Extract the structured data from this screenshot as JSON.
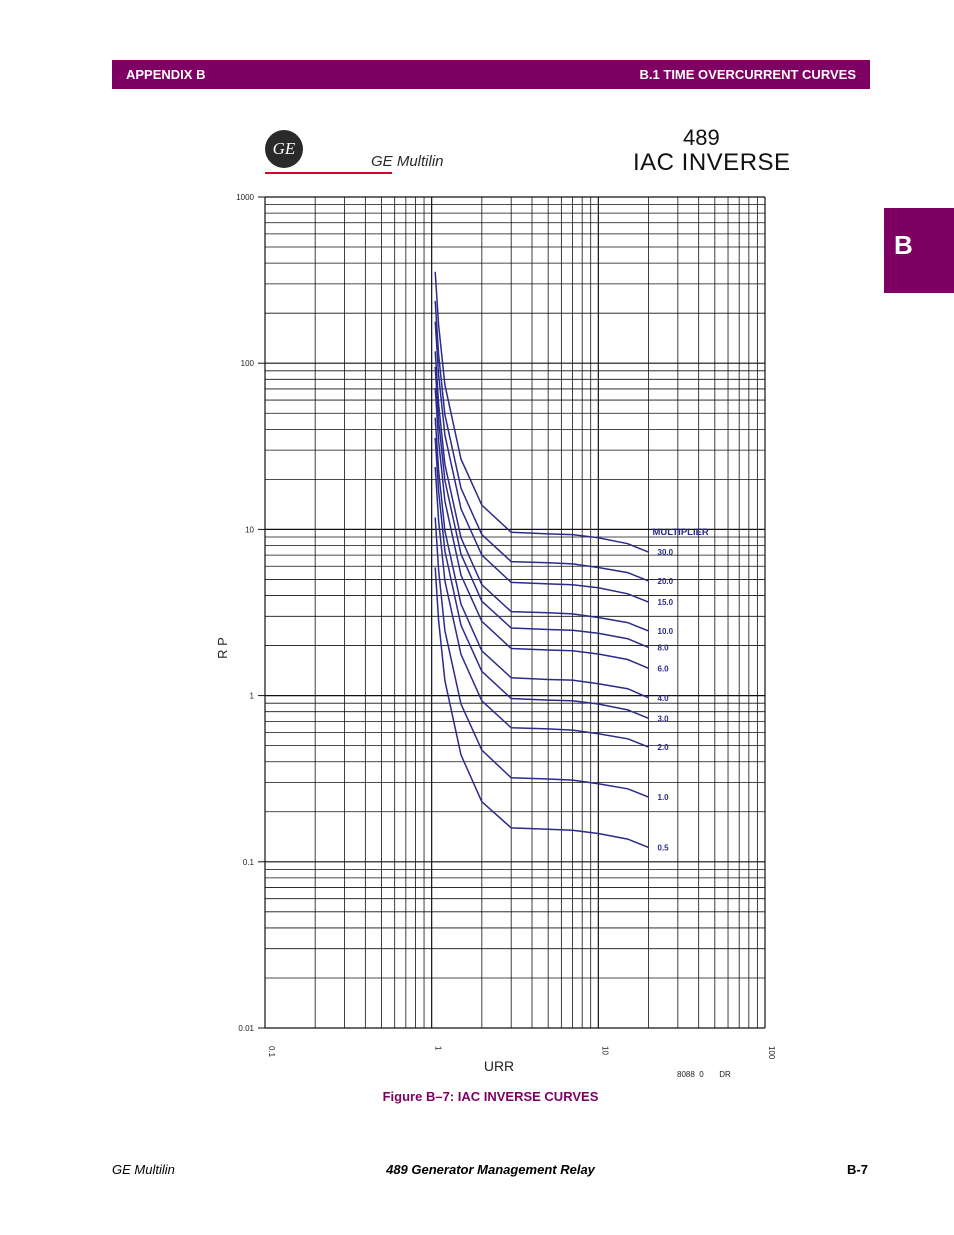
{
  "header": {
    "left": "APPENDIX B",
    "right": "B.1 TIME OVERCURRENT CURVES"
  },
  "side_tab": "B",
  "logo": {
    "icon": "ge-logo-icon",
    "glyph": "GE",
    "brand": "GE Multilin"
  },
  "title": {
    "number": "489",
    "main": "IAC INVERSE"
  },
  "colors": {
    "brand": "#7f0063",
    "curve": "#2b2b8c",
    "grid": "#111111",
    "logo_line": "#d8002a"
  },
  "chart_data": {
    "type": "line",
    "x_scale": "log",
    "y_scale": "log",
    "xlim": [
      0.1,
      100
    ],
    "ylim": [
      0.01,
      1000
    ],
    "xlabel": "URR",
    "ylabel": "R P",
    "x_ticks": [
      "0.1",
      "1",
      "10",
      "100"
    ],
    "y_ticks": [
      "1000",
      "100",
      "10",
      "1",
      "0.1",
      "0.01"
    ],
    "grid": true,
    "legend_title": "MULTIPLIER",
    "drawing_number": "8088  0       DR",
    "x": [
      1.05,
      1.1,
      1.2,
      1.5,
      2,
      3,
      5,
      7,
      10,
      15,
      20
    ],
    "series": [
      {
        "name": "30.0",
        "values": [
          355,
          170,
          74,
          26.5,
          14.0,
          9.6,
          9.4,
          9.3,
          8.9,
          8.2,
          7.3
        ]
      },
      {
        "name": "20.0",
        "values": [
          237,
          113,
          49,
          17.7,
          9.3,
          6.4,
          6.3,
          6.2,
          5.9,
          5.5,
          4.9
        ]
      },
      {
        "name": "15.0",
        "values": [
          178,
          85,
          37,
          13.3,
          7.0,
          4.8,
          4.7,
          4.65,
          4.45,
          4.1,
          3.65
        ]
      },
      {
        "name": "10.0",
        "values": [
          118,
          57,
          24.6,
          8.9,
          4.65,
          3.2,
          3.15,
          3.1,
          2.95,
          2.75,
          2.45
        ]
      },
      {
        "name": "8.0",
        "values": [
          95,
          45,
          19.7,
          7.1,
          3.7,
          2.55,
          2.5,
          2.47,
          2.37,
          2.2,
          1.95
        ]
      },
      {
        "name": "6.0",
        "values": [
          71,
          34,
          14.8,
          5.3,
          2.8,
          1.92,
          1.88,
          1.86,
          1.78,
          1.65,
          1.46
        ]
      },
      {
        "name": "4.0",
        "values": [
          47,
          22.6,
          9.8,
          3.55,
          1.86,
          1.28,
          1.25,
          1.24,
          1.18,
          1.1,
          0.97
        ]
      },
      {
        "name": "3.0",
        "values": [
          35.5,
          17.0,
          7.4,
          2.65,
          1.4,
          0.96,
          0.94,
          0.93,
          0.89,
          0.82,
          0.73
        ]
      },
      {
        "name": "2.0",
        "values": [
          23.7,
          11.3,
          4.9,
          1.77,
          0.93,
          0.64,
          0.63,
          0.62,
          0.59,
          0.55,
          0.49
        ]
      },
      {
        "name": "1.0",
        "values": [
          11.8,
          5.7,
          2.46,
          0.89,
          0.47,
          0.32,
          0.315,
          0.31,
          0.295,
          0.275,
          0.245
        ]
      },
      {
        "name": "0.5",
        "values": [
          5.9,
          2.83,
          1.23,
          0.44,
          0.23,
          0.16,
          0.157,
          0.155,
          0.148,
          0.137,
          0.122
        ]
      }
    ]
  },
  "figure_caption": "Figure B–7: IAC INVERSE CURVES",
  "footer": {
    "left": "GE Multilin",
    "center": "489 Generator Management Relay",
    "right": "B-7"
  }
}
